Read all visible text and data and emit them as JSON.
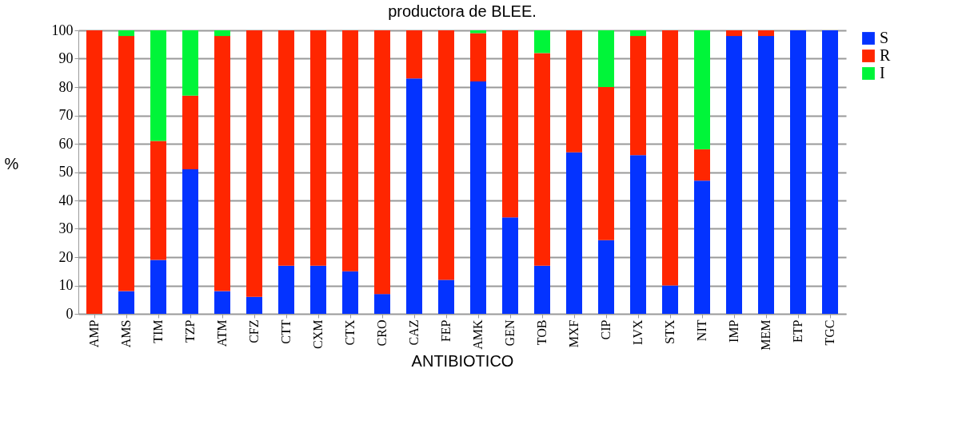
{
  "chart_data": {
    "type": "bar",
    "title": "productora de BLEE.",
    "xlabel": "ANTIBIOTICO",
    "ylabel": "%",
    "categories": [
      "AMP",
      "AMS",
      "TIM",
      "TZP",
      "ATM",
      "CFZ",
      "CTT",
      "CXM",
      "CTX",
      "CRO",
      "CAZ",
      "FEP",
      "AMK",
      "GEN",
      "TOB",
      "MXF",
      "CIP",
      "LVX",
      "STX",
      "NIT",
      "IMP",
      "MEM",
      "ETP",
      "TGC"
    ],
    "series": [
      {
        "name": "S",
        "color": "#0433ff",
        "values": [
          0,
          8,
          19,
          51,
          8,
          6,
          17,
          17,
          15,
          7,
          83,
          12,
          82,
          34,
          17,
          57,
          26,
          56,
          10,
          47,
          98,
          98,
          100,
          100
        ]
      },
      {
        "name": "R",
        "color": "#ff2600",
        "values": [
          100,
          90,
          42,
          26,
          90,
          94,
          83,
          83,
          85,
          93,
          17,
          88,
          17,
          66,
          75,
          43,
          54,
          42,
          90,
          11,
          2,
          2,
          0,
          0
        ]
      },
      {
        "name": "I",
        "color": "#00f539",
        "values": [
          0,
          2,
          39,
          23,
          2,
          0,
          0,
          0,
          0,
          0,
          0,
          0,
          1,
          0,
          8,
          0,
          20,
          2,
          0,
          42,
          0,
          0,
          0,
          0
        ]
      }
    ],
    "stacked": true,
    "ylim": [
      0,
      100
    ],
    "yticks": [
      0,
      10,
      20,
      30,
      40,
      50,
      60,
      70,
      80,
      90,
      100
    ],
    "grid": "y",
    "legend": "right"
  }
}
